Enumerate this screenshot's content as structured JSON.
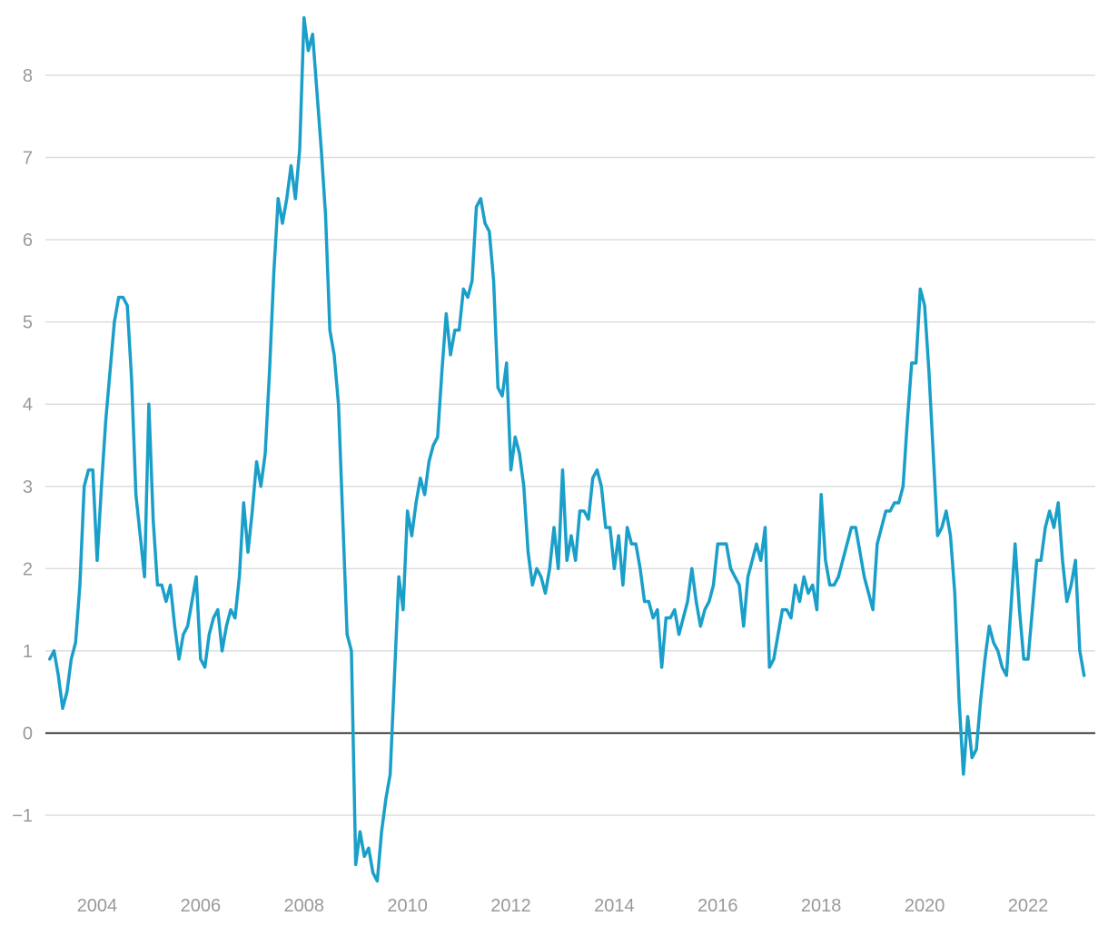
{
  "chart_data": {
    "type": "line",
    "title": "",
    "xlabel": "",
    "ylabel": "",
    "xlim": [
      2003.0,
      2023.3
    ],
    "ylim": [
      -1.85,
      8.75
    ],
    "x_ticks": [
      2004,
      2006,
      2008,
      2010,
      2012,
      2014,
      2016,
      2018,
      2020,
      2022
    ],
    "x_tick_labels": [
      "2004",
      "2006",
      "2008",
      "2010",
      "2012",
      "2014",
      "2016",
      "2018",
      "2020",
      "2022"
    ],
    "y_ticks": [
      -1,
      0,
      1,
      2,
      3,
      4,
      5,
      6,
      7,
      8
    ],
    "y_tick_labels": [
      "−1",
      "0",
      "1",
      "2",
      "3",
      "4",
      "5",
      "6",
      "7",
      "8"
    ],
    "grid": true,
    "zero_line": true,
    "legend": "none",
    "colors": {
      "line": "#1a9fc9",
      "grid": "#dddddd",
      "zero": "#000000",
      "ticks": "#999999"
    },
    "series": [
      {
        "x_start": "2003-02",
        "interval": "month",
        "values": [
          0.9,
          1.0,
          0.7,
          0.3,
          0.5,
          0.9,
          1.1,
          1.8,
          3.0,
          3.2,
          3.2,
          2.1,
          3.0,
          3.8,
          4.4,
          5.0,
          5.3,
          5.3,
          5.2,
          4.3,
          2.9,
          2.4,
          1.9,
          4.0,
          2.6,
          1.8,
          1.8,
          1.6,
          1.8,
          1.3,
          0.9,
          1.2,
          1.3,
          1.6,
          1.9,
          0.9,
          0.8,
          1.2,
          1.4,
          1.5,
          1.0,
          1.3,
          1.5,
          1.4,
          1.9,
          2.8,
          2.2,
          2.7,
          3.3,
          3.0,
          3.4,
          4.4,
          5.6,
          6.5,
          6.2,
          6.5,
          6.9,
          6.5,
          7.1,
          8.7,
          8.3,
          8.5,
          7.8,
          7.1,
          6.3,
          4.9,
          4.6,
          4.0,
          2.6,
          1.2,
          1.0,
          -1.6,
          -1.2,
          -1.5,
          -1.4,
          -1.7,
          -1.8,
          -1.2,
          -0.8,
          -0.5,
          0.7,
          1.9,
          1.5,
          2.7,
          2.4,
          2.8,
          3.1,
          2.9,
          3.3,
          3.5,
          3.6,
          4.4,
          5.1,
          4.6,
          4.9,
          4.9,
          5.4,
          5.3,
          5.5,
          6.4,
          6.5,
          6.2,
          6.1,
          5.5,
          4.2,
          4.1,
          4.5,
          3.2,
          3.6,
          3.4,
          3.0,
          2.2,
          1.8,
          2.0,
          1.9,
          1.7,
          2.0,
          2.5,
          2.0,
          3.2,
          2.1,
          2.4,
          2.1,
          2.7,
          2.7,
          2.6,
          3.1,
          3.2,
          3.0,
          2.5,
          2.5,
          2.0,
          2.4,
          1.8,
          2.5,
          2.3,
          2.3,
          2.0,
          1.6,
          1.6,
          1.4,
          1.5,
          0.8,
          1.4,
          1.4,
          1.5,
          1.2,
          1.4,
          1.6,
          2.0,
          1.6,
          1.3,
          1.5,
          1.6,
          1.8,
          2.3,
          2.3,
          2.3,
          2.0,
          1.9,
          1.8,
          1.3,
          1.9,
          2.1,
          2.3,
          2.1,
          2.5,
          0.8,
          0.9,
          1.2,
          1.5,
          1.5,
          1.4,
          1.8,
          1.6,
          1.9,
          1.7,
          1.8,
          1.5,
          2.9,
          2.1,
          1.8,
          1.8,
          1.9,
          2.1,
          2.3,
          2.5,
          2.5,
          2.2,
          1.9,
          1.7,
          1.5,
          2.3,
          2.5,
          2.7,
          2.7,
          2.8,
          2.8,
          3.0,
          3.8,
          4.5,
          4.5,
          5.4,
          5.2,
          4.4,
          3.4,
          2.4,
          2.5,
          2.7,
          2.4,
          1.7,
          0.4,
          -0.5,
          0.2,
          -0.3,
          -0.2,
          0.4,
          0.9,
          1.3,
          1.1,
          1.0,
          0.8,
          0.7,
          1.5,
          2.3,
          1.5,
          0.9,
          0.9,
          1.5,
          2.1,
          2.1,
          2.5,
          2.7,
          2.5,
          2.8,
          2.1,
          1.6,
          1.8,
          2.1,
          1.0,
          0.7
        ]
      }
    ]
  }
}
